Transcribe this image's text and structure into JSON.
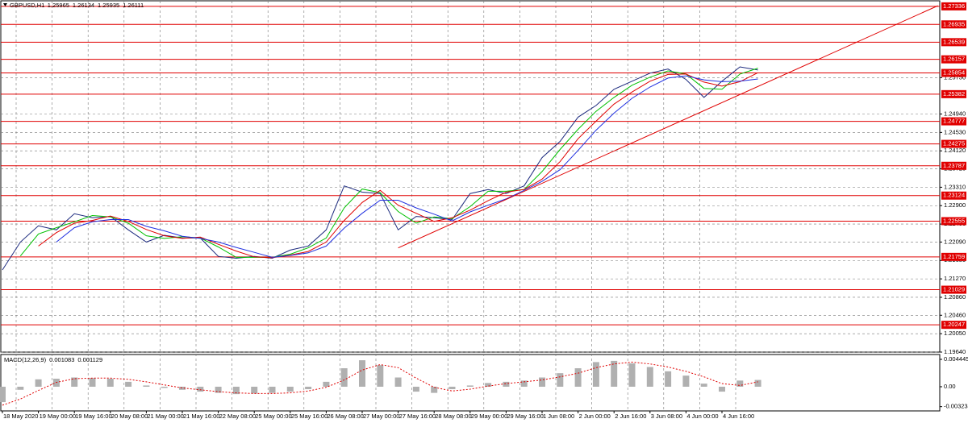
{
  "chart_data": [
    {
      "type": "line",
      "title": "GBPUSD,H1",
      "header_values": [
        1.25965,
        1.26134,
        1.25935,
        1.26111
      ],
      "categories": [
        "18 May 2020",
        null,
        "19 May 00:00",
        null,
        "19 May 16:00",
        null,
        "20 May 08:00",
        null,
        "21 May 00:00",
        null,
        "21 May 16:00",
        null,
        "22 May 08:00",
        null,
        "25 May 00:00",
        null,
        "25 May 16:00",
        null,
        "26 May 08:00",
        null,
        "27 May 00:00",
        null,
        "27 May 16:00",
        null,
        "28 May 08:00",
        null,
        "29 May 00:00",
        null,
        "29 May 16:00",
        null,
        "1 Jun 08:00",
        null,
        "2 Jun 00:00",
        null,
        "2 Jun 16:00",
        null,
        "3 Jun 08:00",
        null,
        "4 Jun 00:00",
        null,
        "4 Jun 16:00",
        null,
        null
      ],
      "series": [
        {
          "color": "#1c2a7e",
          "values": [
            1.2147,
            1.2209,
            1.2245,
            1.2236,
            1.2272,
            1.2263,
            1.2266,
            1.2236,
            1.2209,
            1.2224,
            1.2218,
            1.2218,
            1.2177,
            1.2173,
            1.2177,
            1.2173,
            1.2191,
            1.22,
            1.2236,
            1.2334,
            1.232,
            1.2317,
            1.2236,
            1.2266,
            1.2263,
            1.2259,
            1.2317,
            1.2326,
            1.2317,
            1.2334,
            1.2397,
            1.2433,
            1.2487,
            1.2513,
            1.2549,
            1.2567,
            1.2585,
            1.2594,
            1.2571,
            1.2531,
            1.2567,
            1.2599,
            1.2592
          ]
        },
        {
          "color": "#00c000",
          "values": [
            null,
            1.2178,
            1.2227,
            1.2241,
            1.2254,
            1.2268,
            1.2265,
            1.2251,
            1.2223,
            1.2217,
            1.2221,
            1.2218,
            1.2198,
            1.2175,
            1.2175,
            1.2175,
            1.2182,
            1.2196,
            1.2218,
            1.2285,
            1.2327,
            1.2319,
            1.2277,
            1.2251,
            1.2265,
            1.2261,
            1.2288,
            1.2322,
            1.2322,
            1.2326,
            1.2366,
            1.2415,
            1.246,
            1.25,
            1.2531,
            1.2558,
            1.2576,
            1.259,
            1.2583,
            1.2551,
            1.2549,
            1.2583,
            1.2596
          ]
        },
        {
          "color": "#e00000",
          "values": [
            null,
            null,
            1.22,
            1.223,
            1.2251,
            1.2257,
            1.2267,
            1.2255,
            1.2237,
            1.2223,
            1.2217,
            1.222,
            1.2204,
            1.2189,
            1.2176,
            1.2174,
            1.218,
            1.2188,
            1.2209,
            1.2257,
            1.2297,
            1.2324,
            1.2291,
            1.2273,
            1.2255,
            1.2263,
            1.228,
            1.2301,
            1.232,
            1.2326,
            1.2349,
            1.2388,
            1.2439,
            1.2478,
            1.2516,
            1.2543,
            1.2567,
            1.2582,
            1.2583,
            1.2565,
            1.2556,
            1.2566,
            1.2586
          ]
        },
        {
          "color": "#2030e0",
          "values": [
            null,
            null,
            null,
            1.2209,
            1.2241,
            1.2254,
            1.2259,
            1.2259,
            1.2244,
            1.2234,
            1.2222,
            1.2217,
            1.2209,
            1.2197,
            1.2186,
            1.2175,
            1.2179,
            1.2185,
            1.22,
            1.224,
            1.2273,
            1.2302,
            1.2302,
            1.2285,
            1.2271,
            1.2256,
            1.2276,
            1.2291,
            1.2305,
            1.2324,
            1.2344,
            1.237,
            1.2413,
            1.2458,
            1.2496,
            1.2529,
            1.2554,
            1.2574,
            1.2579,
            1.257,
            1.2566,
            1.2567,
            1.2572
          ]
        }
      ],
      "levels": [
        1.27336,
        1.26935,
        1.26539,
        1.26157,
        1.25854,
        1.25382,
        1.24777,
        1.24275,
        1.23787,
        1.23124,
        1.22555,
        1.21759,
        1.21029,
        1.20247
      ],
      "level_color": "#e00000",
      "trendline": {
        "color": "#e00000",
        "x": [
          22,
          52
        ],
        "values": [
          1.2196,
          1.2735
        ]
      },
      "ylim": [
        1.1964,
        1.2746
      ],
      "yticks": [
        {
          "value": 1.2575,
          "label": "1.25750"
        },
        {
          "value": 1.2494,
          "label": "1.24940"
        },
        {
          "value": 1.2453,
          "label": "1.24530"
        },
        {
          "value": 1.2412,
          "label": "1.24120"
        },
        {
          "value": 1.2372,
          "label": "1.23720"
        },
        {
          "value": 1.2331,
          "label": "1.23310"
        },
        {
          "value": 1.229,
          "label": "1.22900"
        },
        {
          "value": 1.2249,
          "label": "1.22490"
        },
        {
          "value": 1.2209,
          "label": "1.22090"
        },
        {
          "value": 1.2168,
          "label": "1.21680"
        },
        {
          "value": 1.2127,
          "label": "1.21270"
        },
        {
          "value": 1.2086,
          "label": "1.20860"
        },
        {
          "value": 1.2046,
          "label": "1.20460"
        },
        {
          "value": 1.2005,
          "label": "1.20050"
        },
        {
          "value": 1.1964,
          "label": "1.19640"
        }
      ],
      "grid": true
    },
    {
      "type": "bar",
      "title": "MACD(12,26,9)",
      "header_values": [
        0.001083,
        0.001129
      ],
      "color": "#b0b0b0",
      "values": [
        -0.0025,
        -0.0005,
        0.0012,
        0.0013,
        0.0015,
        0.0014,
        0.0013,
        0.0008,
        0.0002,
        -0.0002,
        -0.0005,
        -0.0008,
        -0.001,
        -0.0012,
        -0.0011,
        -0.001,
        -0.0008,
        -0.0004,
        0.0008,
        0.003,
        0.0043,
        0.0035,
        0.0015,
        -0.0008,
        -0.001,
        -0.0004,
        0.0002,
        0.0006,
        0.0008,
        0.001,
        0.0015,
        0.0022,
        0.003,
        0.004,
        0.0042,
        0.0038,
        0.0032,
        0.0025,
        0.0018,
        0.0005,
        -0.0008,
        0.001,
        0.0011
      ],
      "signal": {
        "color": "#e00000",
        "values": [
          -0.003,
          -0.002,
          -0.0006,
          0.0007,
          0.0013,
          0.0014,
          0.0014,
          0.0012,
          0.0008,
          0.0003,
          -0.0002,
          -0.0005,
          -0.0008,
          -0.001,
          -0.0011,
          -0.0011,
          -0.001,
          -0.0007,
          -0.0001,
          0.0011,
          0.0027,
          0.0036,
          0.0031,
          0.0014,
          -0.0001,
          -0.0007,
          -0.0004,
          0.0001,
          0.0005,
          0.0008,
          0.0011,
          0.0016,
          0.0022,
          0.0031,
          0.0037,
          0.004,
          0.0037,
          0.0032,
          0.0025,
          0.0016,
          0.0005,
          0.0002,
          0.0008
        ]
      },
      "ylim": [
        -0.0038,
        0.0051
      ],
      "yticks": [
        0.004445,
        {
          "value": 0,
          "label": "0.00"
        },
        -0.003234
      ]
    }
  ]
}
